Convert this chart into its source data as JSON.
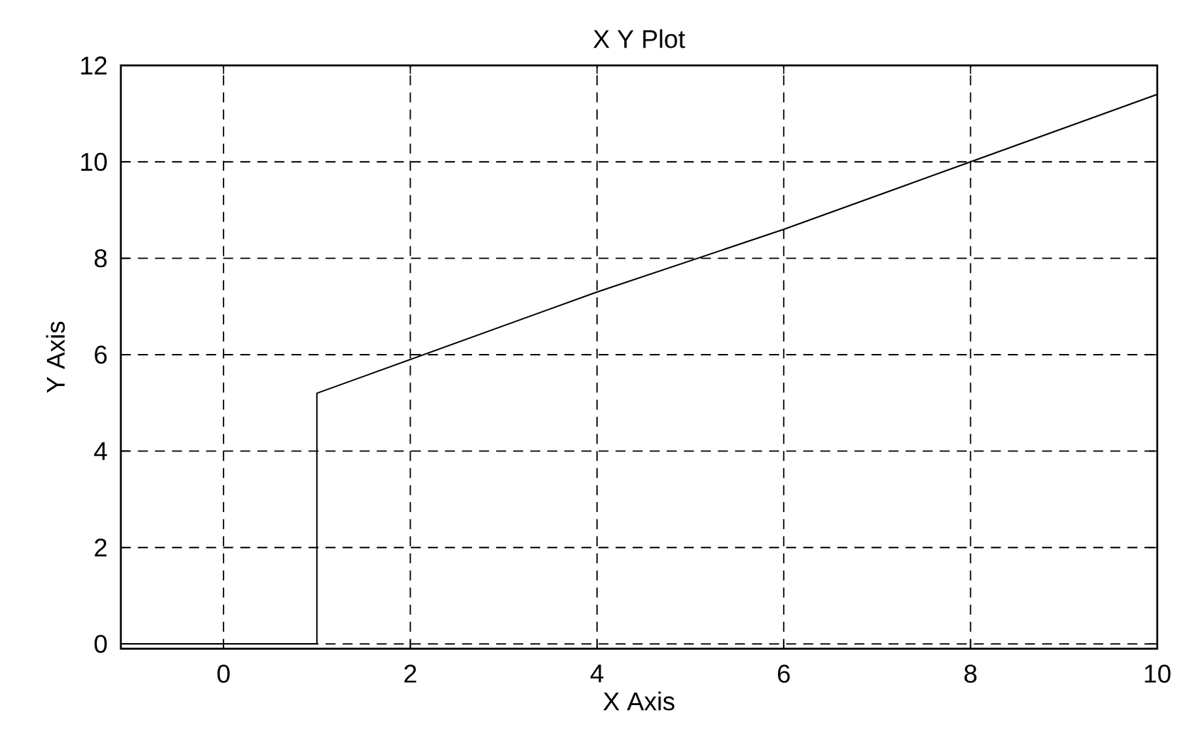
{
  "chart_data": {
    "type": "line",
    "title": "X Y Plot",
    "xlabel": "X Axis",
    "ylabel": "Y Axis",
    "x": [
      -1.1,
      1,
      1,
      2,
      4,
      6,
      8,
      10
    ],
    "series": [
      {
        "color": "#000000",
        "values": [
          0,
          0,
          5.2,
          5.9,
          7.3,
          8.6,
          10,
          11.4
        ]
      }
    ],
    "xlim": [
      -1.1,
      10
    ],
    "ylim": [
      -0.1,
      12
    ],
    "xticks": [
      0,
      2,
      4,
      6,
      8,
      10
    ],
    "yticks": [
      0,
      2,
      4,
      6,
      8,
      10,
      12
    ],
    "grid": true,
    "marker": "none",
    "line_style": "solid"
  }
}
